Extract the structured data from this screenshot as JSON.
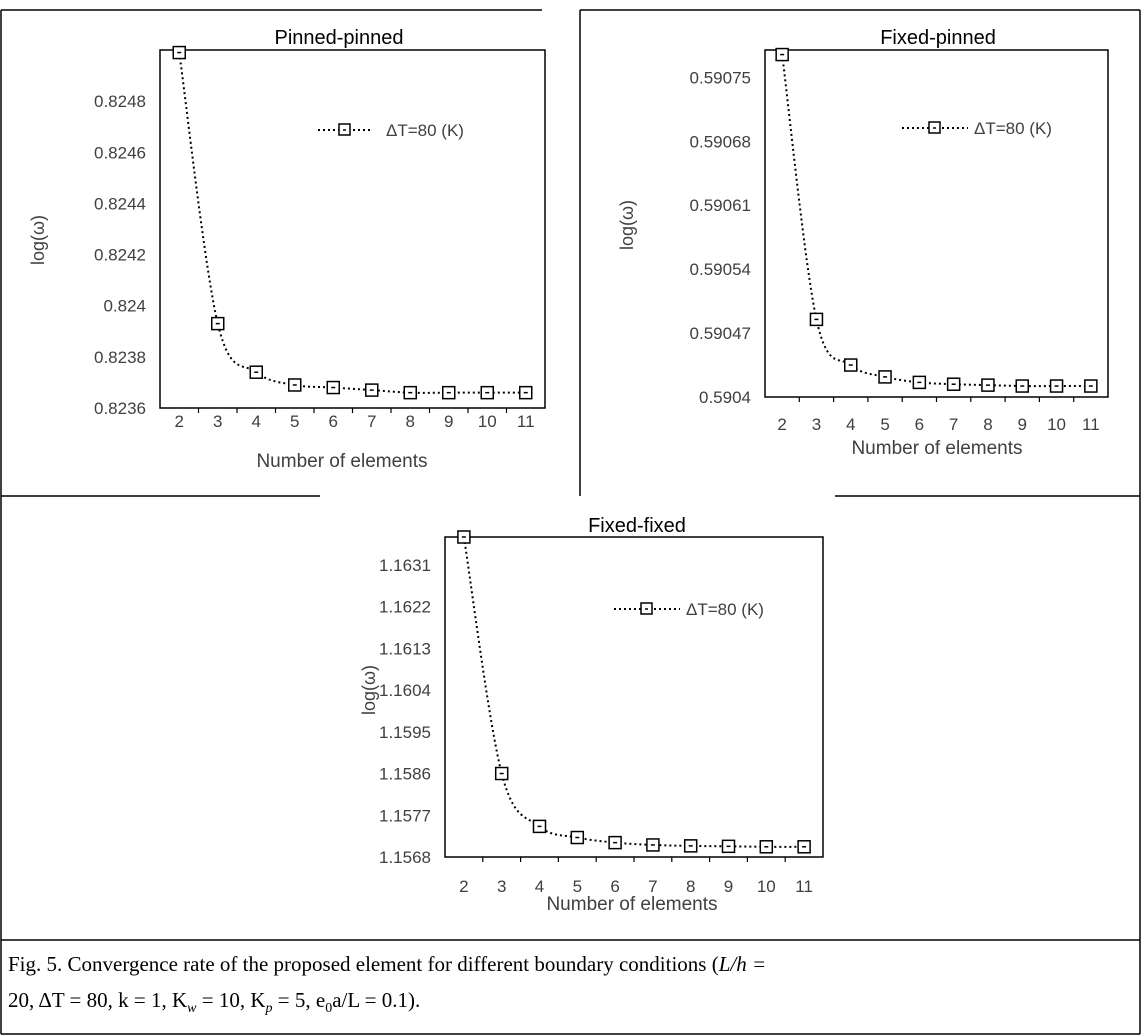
{
  "chart_data": [
    {
      "type": "line",
      "title": "Pinned-pinned",
      "xlabel": "Number of elements",
      "ylabel": "log(ω)",
      "categories": [
        "2",
        "3",
        "4",
        "5",
        "6",
        "7",
        "8",
        "9",
        "10",
        "11"
      ],
      "yticks": [
        "0.8236",
        "0.8238",
        "0.824",
        "0.8242",
        "0.8244",
        "0.8246",
        "0.8248"
      ],
      "ylim": [
        0.8236,
        0.825
      ],
      "series": [
        {
          "name": "ΔT=80 (K)",
          "values": [
            0.82499,
            0.82393,
            0.82374,
            0.82369,
            0.82368,
            0.82367,
            0.82366,
            0.82366,
            0.82366,
            0.82366
          ]
        }
      ],
      "legend_position": "top-right",
      "grid": false
    },
    {
      "type": "line",
      "title": "Fixed-pinned",
      "xlabel": "Number of elements",
      "ylabel": "log(ω)",
      "categories": [
        "2",
        "3",
        "4",
        "5",
        "6",
        "7",
        "8",
        "9",
        "10",
        "11"
      ],
      "yticks": [
        "0.5904",
        "0.59047",
        "0.59054",
        "0.59061",
        "0.59068",
        "0.59075"
      ],
      "ylim": [
        0.5904,
        0.59078
      ],
      "series": [
        {
          "name": "ΔT=80 (K)",
          "values": [
            0.590775,
            0.590485,
            0.590435,
            0.590422,
            0.590416,
            0.590414,
            0.590413,
            0.590412,
            0.590412,
            0.590412
          ]
        }
      ],
      "legend_position": "top-right",
      "grid": false
    },
    {
      "type": "line",
      "title": "Fixed-fixed",
      "xlabel": "Number of elements",
      "ylabel": "log(ω)",
      "categories": [
        "2",
        "3",
        "4",
        "5",
        "6",
        "7",
        "8",
        "9",
        "10",
        "11"
      ],
      "yticks": [
        "1.1568",
        "1.1577",
        "1.1586",
        "1.1595",
        "1.1604",
        "1.1613",
        "1.1622",
        "1.1631"
      ],
      "ylim": [
        1.1568,
        1.1637
      ],
      "series": [
        {
          "name": "ΔT=80 (K)",
          "values": [
            1.1637,
            1.1586,
            1.15746,
            1.15722,
            1.15711,
            1.15706,
            1.15704,
            1.15703,
            1.15702,
            1.15702
          ]
        }
      ],
      "legend_position": "top-right",
      "grid": false
    }
  ],
  "caption": {
    "line1": "Fig. 5. Convergence rate of the proposed element for different boundary conditions (",
    "line1_math": "L/h =",
    "line2": "20, ΔT = 80,  k = 1, K",
    "line2_rest": "= 10, K",
    "line2_rest2": "= 5, e",
    "line2_tail": "a/L = 0.1).",
    "sub_w": "w",
    "sub_p": "p",
    "sub_0": "0"
  }
}
